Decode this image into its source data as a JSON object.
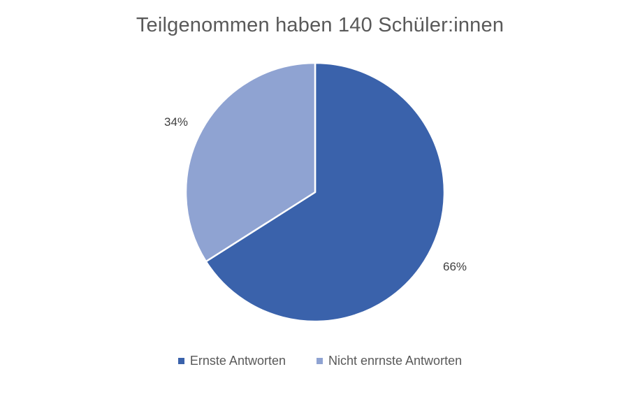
{
  "chart_data": {
    "type": "pie",
    "title": "Teilgenommen haben 140 Schüler:innen",
    "slices": [
      {
        "name": "Ernste Antworten",
        "value": 66,
        "label": "66%",
        "color": "#3A62AB"
      },
      {
        "name": "Nicht enrnste Antworten",
        "value": 34,
        "label": "34%",
        "color": "#8FA3D2"
      }
    ],
    "legend_position": "bottom"
  }
}
